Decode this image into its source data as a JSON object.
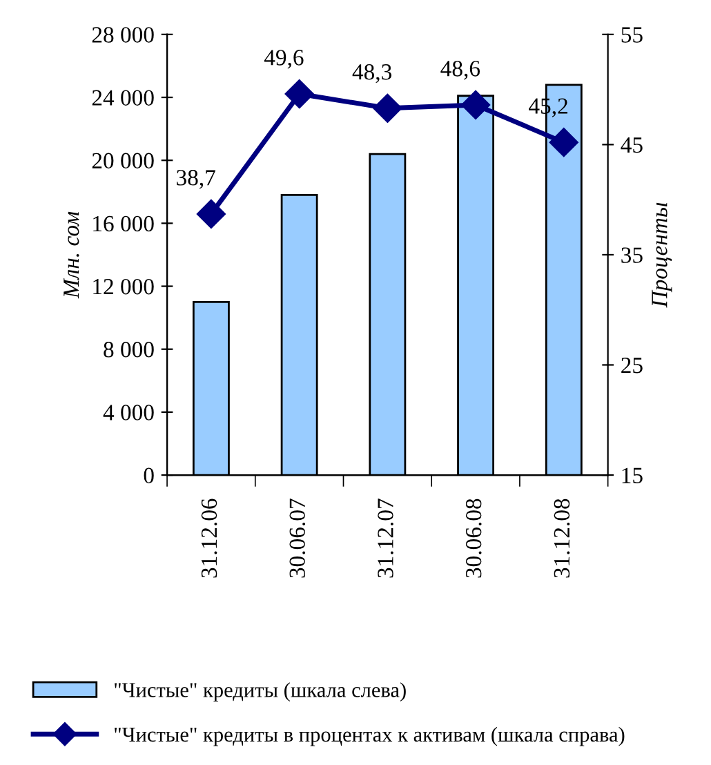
{
  "chart_data": {
    "type": "bar",
    "categories": [
      "31.12.06",
      "30.06.07",
      "31.12.07",
      "30.06.08",
      "31.12.08"
    ],
    "ylabel": "Млн. сом",
    "y2label": "Проценты",
    "ylim": [
      0,
      28000
    ],
    "yticks": [
      {
        "value": 0,
        "label": "0"
      },
      {
        "value": 4000,
        "label": "4 000"
      },
      {
        "value": 8000,
        "label": "8 000"
      },
      {
        "value": 12000,
        "label": "12 000"
      },
      {
        "value": 16000,
        "label": "16 000"
      },
      {
        "value": 20000,
        "label": "20 000"
      },
      {
        "value": 24000,
        "label": "24 000"
      },
      {
        "value": 28000,
        "label": "28 000"
      }
    ],
    "y2lim": [
      15,
      55
    ],
    "y2ticks": [
      15,
      25,
      35,
      45,
      55
    ],
    "legend": "bottom",
    "grid": false,
    "series": [
      {
        "name": "\"Чистые\" кредиты (шкала слева)",
        "color": "#99ccff",
        "values": [
          11000,
          17800,
          20400,
          24100,
          24800
        ]
      },
      {
        "name": "\"Чистые\" кредиты в процентах к активам (шкала справа)",
        "type": "line",
        "axis": "y2",
        "color": "#000080",
        "marker": "diamond",
        "values": [
          38.7,
          49.6,
          48.3,
          48.6,
          45.2
        ],
        "value_labels": [
          "38,7",
          "49,6",
          "48,3",
          "48,6",
          "45,2"
        ]
      }
    ]
  }
}
